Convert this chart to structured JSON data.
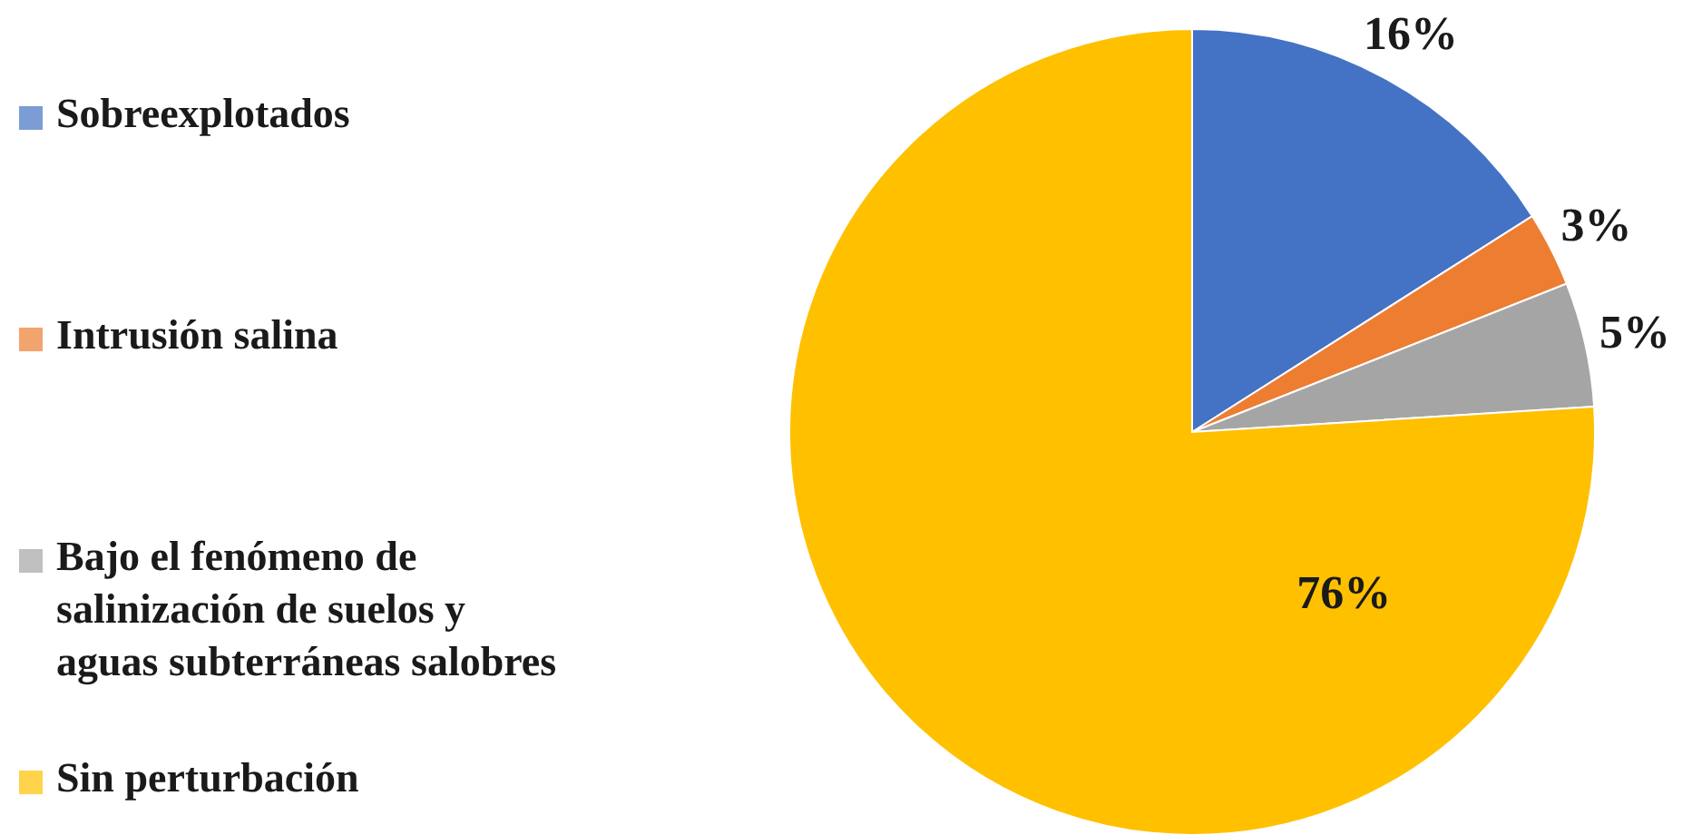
{
  "chart_data": {
    "type": "pie",
    "categories": [
      "Sobreexplotados",
      "Intrusión salina",
      "Bajo el fenómeno de salinización de suelos y aguas subterráneas salobres",
      "Sin perturbación"
    ],
    "values": [
      16,
      3,
      5,
      76
    ],
    "colors": [
      "#4472c4",
      "#ed7d31",
      "#a5a5a5",
      "#ffc000"
    ],
    "value_labels": [
      "16%",
      "3%",
      "5%",
      "76%"
    ],
    "legend": "left"
  }
}
